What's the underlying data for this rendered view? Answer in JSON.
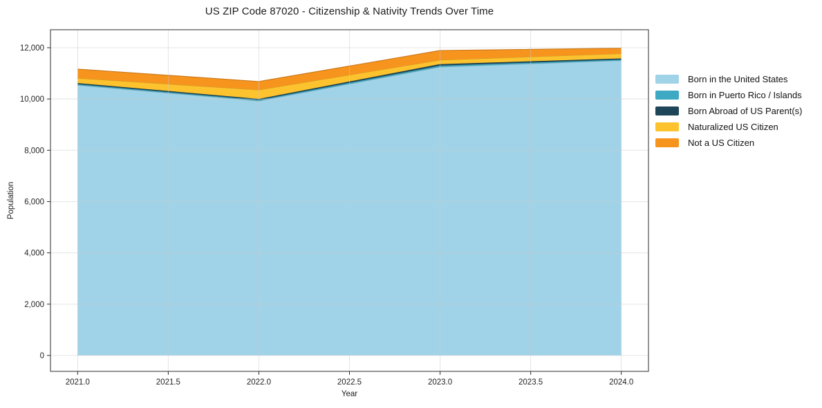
{
  "window": {
    "background": "#ffffff"
  },
  "chart_data": {
    "type": "area",
    "stacked": true,
    "title": "US ZIP Code 87020 - Citizenship & Nativity Trends Over Time",
    "xlabel": "Year",
    "ylabel": "Population",
    "x": [
      2021,
      2022,
      2023,
      2024
    ],
    "series": [
      {
        "name": "Born in the United States",
        "color": "#A1D3E8",
        "values": [
          10540,
          9925,
          11250,
          11500
        ]
      },
      {
        "name": "Born in Puerto Rico / Islands",
        "color": "#3EA9C2",
        "values": [
          40,
          40,
          55,
          40
        ]
      },
      {
        "name": "Born Abroad of US Parent(s)",
        "color": "#1F4558",
        "values": [
          40,
          40,
          55,
          40
        ]
      },
      {
        "name": "Naturalized US Citizen",
        "color": "#FDC32F",
        "values": [
          190,
          350,
          160,
          190
        ]
      },
      {
        "name": "Not a US Citizen",
        "color": "#F7941E",
        "values": [
          355,
          325,
          370,
          210
        ]
      }
    ],
    "totals": [
      11165,
      10680,
      11890,
      11980
    ],
    "xticks": {
      "values": [
        2021.0,
        2021.5,
        2022.0,
        2022.5,
        2023.0,
        2023.5,
        2024.0
      ],
      "labels": [
        "2021.0",
        "2021.5",
        "2022.0",
        "2022.5",
        "2023.0",
        "2023.5",
        "2024.0"
      ]
    },
    "yticks": {
      "values": [
        0,
        2000,
        4000,
        6000,
        8000,
        10000,
        12000
      ],
      "labels": [
        "0",
        "2,000",
        "4,000",
        "6,000",
        "8,000",
        "10,000",
        "12,000"
      ]
    },
    "xlim": [
      2020.85,
      2024.15
    ],
    "ylim": [
      -620,
      12700
    ],
    "grid": true,
    "grid_color": "#c9c9c9",
    "spine_color": "#2a2a2a",
    "text_color": "#1f1f1f",
    "legend": {
      "position": "outside-right",
      "frame": false
    }
  }
}
